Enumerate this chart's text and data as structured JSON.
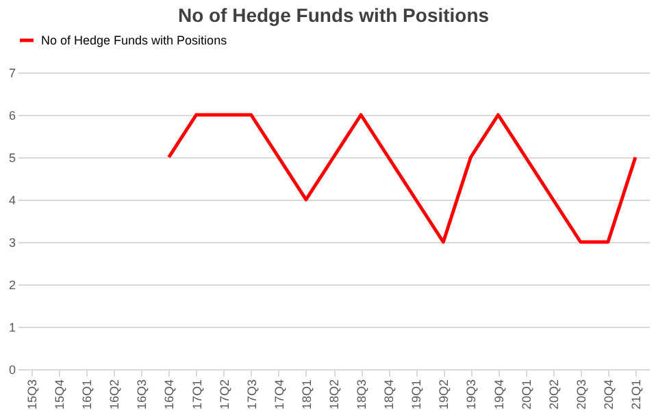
{
  "chart_data": {
    "type": "line",
    "title": "No of Hedge Funds with Positions",
    "categories": [
      "15Q3",
      "15Q4",
      "16Q1",
      "16Q2",
      "16Q3",
      "16Q4",
      "17Q1",
      "17Q2",
      "17Q3",
      "17Q4",
      "18Q1",
      "18Q2",
      "18Q3",
      "18Q4",
      "19Q1",
      "19Q2",
      "19Q3",
      "19Q4",
      "20Q1",
      "20Q2",
      "20Q3",
      "20Q4",
      "21Q1"
    ],
    "series": [
      {
        "name": "No of Hedge Funds with Positions",
        "color": "#ff0000",
        "values": [
          null,
          null,
          null,
          null,
          null,
          5,
          6,
          6,
          6,
          5,
          4,
          5,
          6,
          5,
          4,
          3,
          5,
          6,
          5,
          4,
          3,
          3,
          5
        ]
      }
    ],
    "ylim": [
      0,
      7
    ],
    "yticks": [
      0,
      1,
      2,
      3,
      4,
      5,
      6,
      7
    ],
    "grid": "y",
    "legend": "top",
    "marker": "none",
    "line_style": "solid"
  }
}
